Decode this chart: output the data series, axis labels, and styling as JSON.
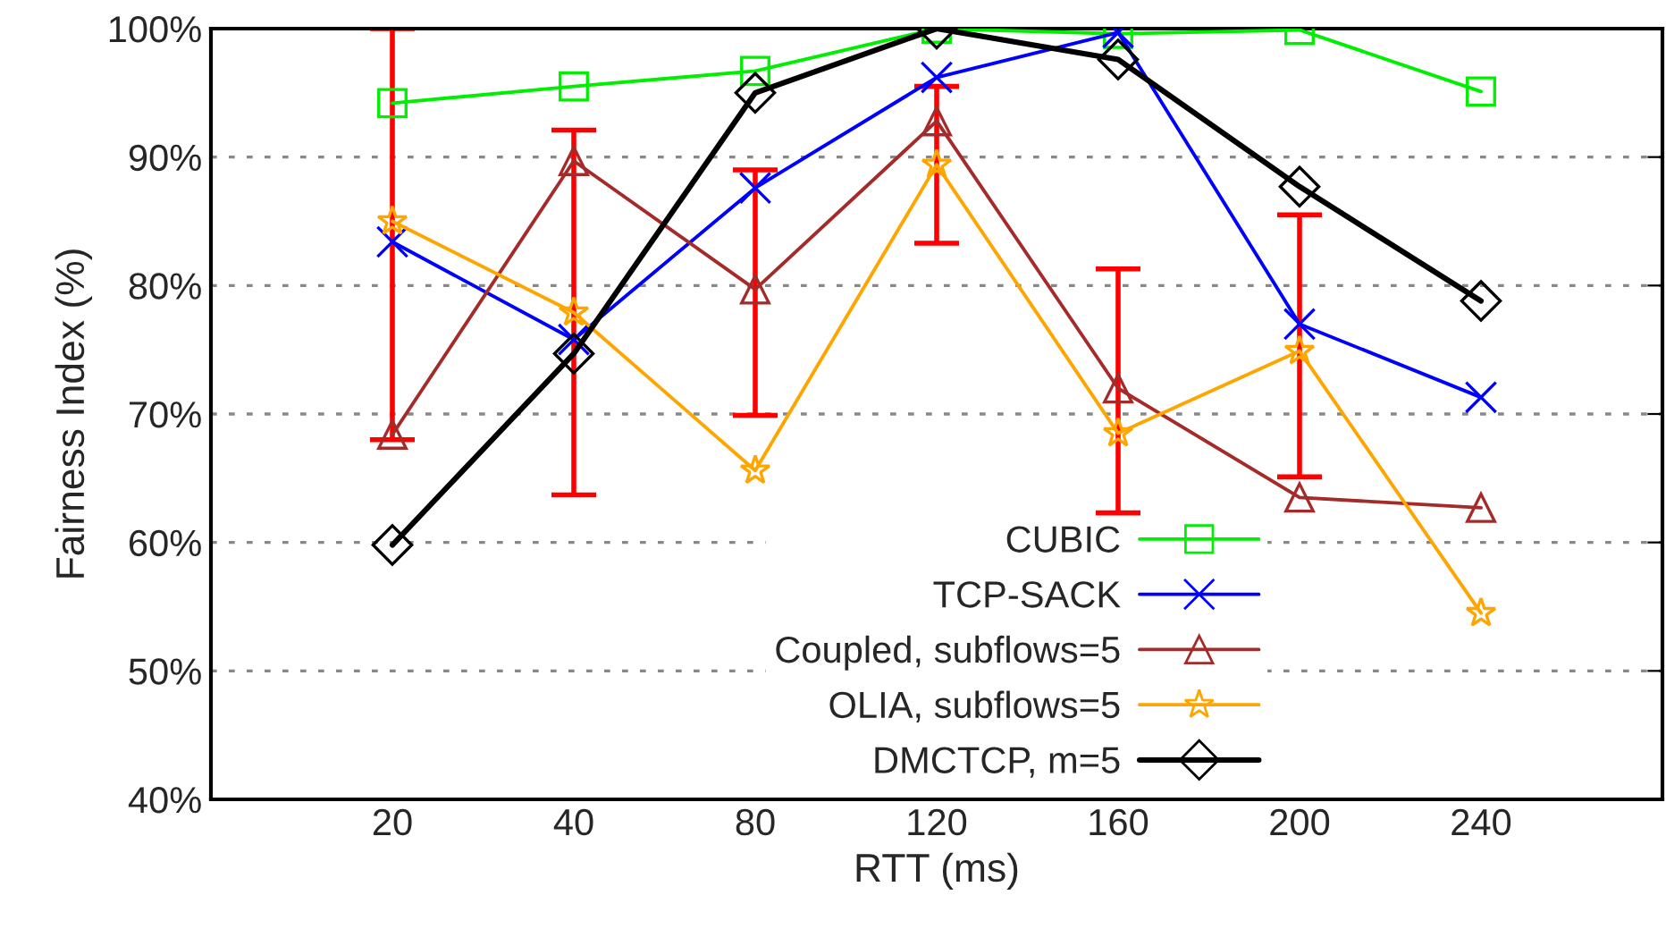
{
  "chart_data": {
    "type": "line",
    "xlabel": "RTT (ms)",
    "ylabel": "Fairness Index (%)",
    "categories": [
      "20",
      "40",
      "80",
      "120",
      "160",
      "200",
      "240"
    ],
    "ylim": [
      40,
      100
    ],
    "yticks": [
      {
        "value": 40,
        "label": "40%"
      },
      {
        "value": 50,
        "label": "50%"
      },
      {
        "value": 60,
        "label": "60%"
      },
      {
        "value": 70,
        "label": "70%"
      },
      {
        "value": 80,
        "label": "80%"
      },
      {
        "value": 90,
        "label": "90%"
      },
      {
        "value": 100,
        "label": "100%"
      }
    ],
    "grid": "y",
    "legend": "bottom",
    "series": [
      {
        "name": "CUBIC",
        "color": "#00ee00",
        "marker": "square",
        "values": [
          94.2,
          95.5,
          96.7,
          100,
          99.6,
          99.9,
          95.1
        ]
      },
      {
        "name": "TCP-SACK",
        "color": "#0000ff",
        "marker": "cross",
        "values": [
          83.4,
          75.8,
          87.6,
          96.2,
          99.7,
          77.0,
          71.3
        ]
      },
      {
        "name": "Coupled, subflows=5",
        "color": "#a52a2a",
        "marker": "triangle",
        "values": [
          68.4,
          89.7,
          79.7,
          92.8,
          72.0,
          63.5,
          62.7
        ],
        "errors": [
          [
            68,
            100
          ],
          null,
          [
            69.9,
            89.0
          ],
          null,
          [
            62.3,
            81.3
          ],
          null,
          null
        ]
      },
      {
        "name": "OLIA, subflows=5",
        "color": "#ffa500",
        "marker": "star",
        "values": [
          85.0,
          77.9,
          65.6,
          89.4,
          68.5,
          74.9,
          54.5
        ],
        "errors": [
          null,
          [
            63.7,
            92.1
          ],
          null,
          [
            83.3,
            95.5
          ],
          null,
          [
            65.1,
            85.5
          ],
          null
        ]
      },
      {
        "name": "DMCTCP, m=5",
        "color": "#000000",
        "marker": "diamond",
        "values": [
          59.8,
          74.7,
          95.0,
          100,
          97.6,
          87.7,
          78.8
        ]
      }
    ]
  }
}
